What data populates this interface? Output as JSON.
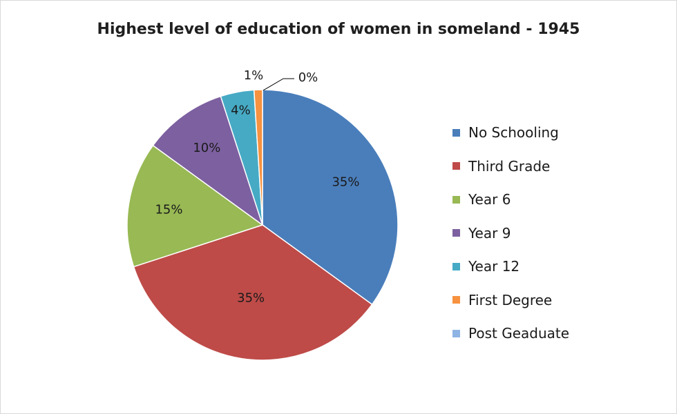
{
  "chart_data": {
    "type": "pie",
    "title": "Highest level of education of women in someland - 1945",
    "categories": [
      "No Schooling",
      "Third Grade",
      "Year 6",
      "Year 9",
      "Year 12",
      "First Degree",
      "Post Geaduate"
    ],
    "values": [
      35,
      35,
      15,
      10,
      4,
      1,
      0
    ],
    "data_labels": [
      "35%",
      "35%",
      "15%",
      "10%",
      "4%",
      "1%",
      "0%"
    ],
    "colors": [
      "#4a7ebb",
      "#be4b48",
      "#98b954",
      "#7d60a0",
      "#46aac5",
      "#f69240",
      "#8eb4e3"
    ],
    "legend_position": "right",
    "start_angle": "top, clockwise"
  }
}
